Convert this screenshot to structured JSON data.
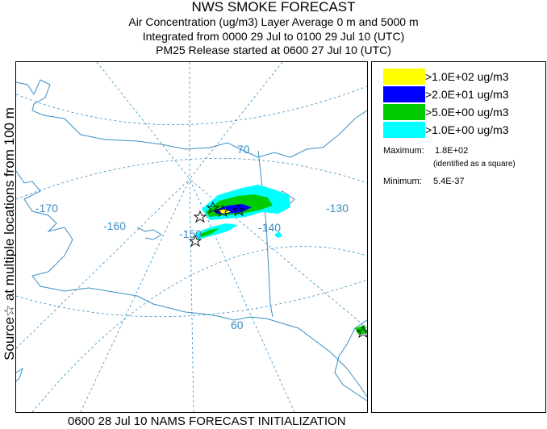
{
  "header": {
    "title": "NWS SMOKE FORECAST",
    "line1": "Air Concentration (ug/m3) Layer Average    0 m and  5000 m",
    "line2": "Integrated from 0000 29 Jul to 0100 29 Jul 10 (UTC)",
    "line3": "PM25 Release started at 0600 27 Jul 10 (UTC)"
  },
  "side_label": "Source☆ at multiple locations   from   100 m",
  "map": {
    "graticule_labels": {
      "lon": [
        "-170",
        "-160",
        "-150",
        "-140",
        "-130"
      ],
      "lat": [
        "70",
        "60"
      ]
    },
    "colors": {
      "land_outline": "#3a8fc4",
      "graticule": "#3a8fc4"
    }
  },
  "legend": {
    "items": [
      {
        "label": ">1.0E+02 ug/m3",
        "color": "#ffff00"
      },
      {
        "label": ">2.0E+01 ug/m3",
        "color": "#0000ff"
      },
      {
        "label": ">5.0E+00 ug/m3",
        "color": "#00cc00"
      },
      {
        "label": ">1.0E+00 ug/m3",
        "color": "#00ffff"
      }
    ],
    "maximum_label": "Maximum:",
    "maximum_value": "1.8E+02",
    "maximum_note": "(identified as a square)",
    "minimum_label": "Minimum:",
    "minimum_value": "5.4E-37"
  },
  "footer": "0600 28 Jul 10 NAMS FORECAST INITIALIZATION"
}
